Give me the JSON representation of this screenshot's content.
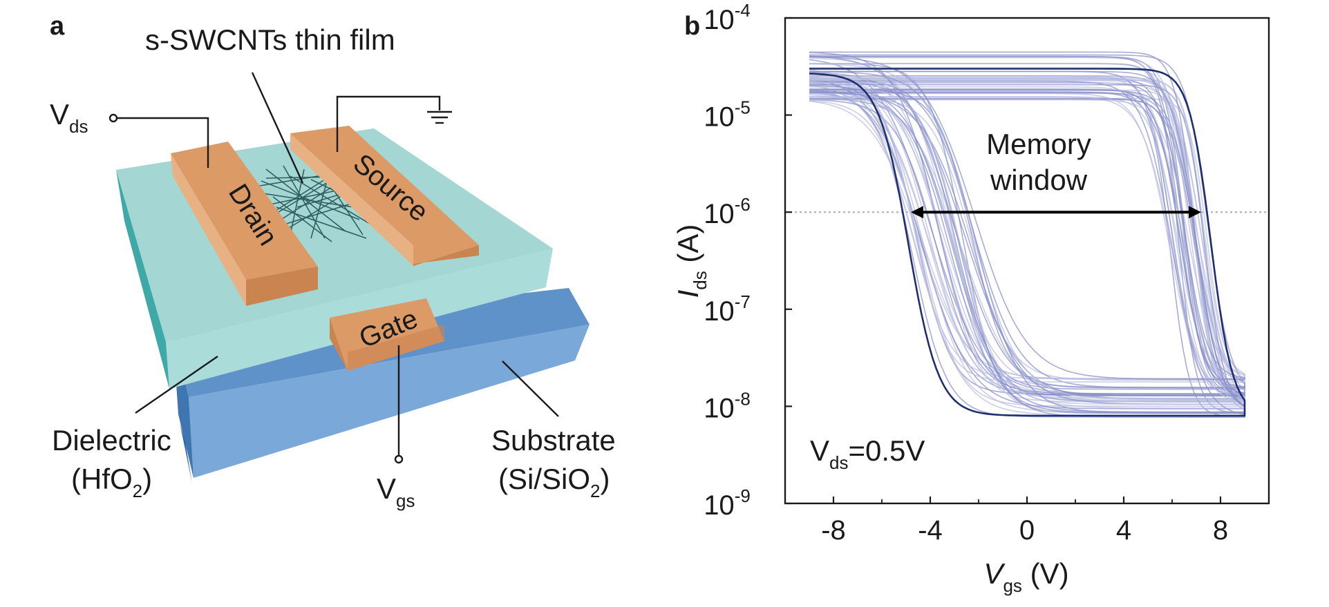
{
  "panel_a": {
    "label": "a",
    "film_label": "s-SWCNTs thin film",
    "vds": {
      "main": "V",
      "sub": "ds"
    },
    "vgs": {
      "main": "V",
      "sub": "gs"
    },
    "drain": "Drain",
    "source": "Source",
    "gate": "Gate",
    "dielectric": {
      "line1": "Dielectric",
      "line2_pre": "(HfO",
      "line2_sub": "2",
      "line2_post": ")"
    },
    "substrate": {
      "line1": "Substrate",
      "line2_pre": "(Si/SiO",
      "line2_sub": "2",
      "line2_post": ")"
    },
    "colors": {
      "electrode": "#dc9a66",
      "dielectric": "#a6d9d6",
      "substrate": "#6c9dcf",
      "cnt": "#1d4a4a"
    }
  },
  "panel_b": {
    "label": "b",
    "annotation_line1": "Memory",
    "annotation_line2": "window",
    "condition": {
      "main": "V",
      "sub": "ds",
      "post": "=0.5V"
    },
    "ylabel": {
      "main": "I",
      "sub": "ds",
      "post": " (A)"
    },
    "xlabel": {
      "main": "V",
      "sub": "gs",
      "post": " (V)"
    },
    "colors": {
      "highlight": "#1f2f6e",
      "faint": "#b9bde0",
      "medium": "#8a90c8",
      "reference": "#aaaaaa"
    }
  },
  "chart_data": {
    "type": "line",
    "xlabel": "Vgs (V)",
    "ylabel": "Ids (A)",
    "xlim": [
      -10,
      10
    ],
    "ylim": [
      1e-09,
      0.0001
    ],
    "yscale": "log",
    "xticks": [
      -8,
      -4,
      0,
      4,
      8
    ],
    "yticks": [
      {
        "value": 0.0001,
        "base": "10",
        "exp": "-4"
      },
      {
        "value": 1e-05,
        "base": "10",
        "exp": "-5"
      },
      {
        "value": 1e-06,
        "base": "10",
        "exp": "-6"
      },
      {
        "value": 1e-07,
        "base": "10",
        "exp": "-7"
      },
      {
        "value": 1e-08,
        "base": "10",
        "exp": "-8"
      },
      {
        "value": 1e-09,
        "base": "10",
        "exp": "-9"
      }
    ],
    "reference_line_y": 1e-06,
    "memory_window": {
      "x_start": -4.8,
      "x_end": 7.2,
      "y": 1e-06
    },
    "highlighted_sweep": {
      "forward_threshold_x": 7.6,
      "reverse_threshold_x": -4.9,
      "on_current": 3e-05,
      "off_current": 8e-09
    },
    "sweep_family": {
      "count": 40,
      "forward_threshold_range": [
        5.8,
        7.5
      ],
      "reverse_threshold_range": [
        -4.8,
        -2.0
      ],
      "on_current_range": [
        1.4e-05,
        4.6e-05
      ],
      "off_current_range": [
        7.5e-09,
        2e-08
      ]
    }
  }
}
